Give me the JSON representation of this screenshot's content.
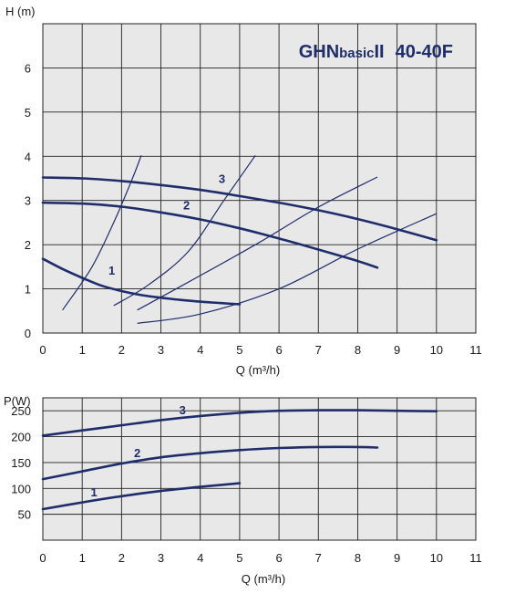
{
  "chart_data": [
    {
      "type": "line",
      "title": "GHNbasicII 40-40F",
      "title_parts": [
        "GHN",
        "basic",
        "II",
        "40-40F"
      ],
      "xlabel": "Q (m³/h)",
      "ylabel": "H (m)",
      "xlim": [
        0,
        11
      ],
      "ylim": [
        0,
        7
      ],
      "x_ticks": [
        0,
        1,
        2,
        3,
        4,
        5,
        6,
        7,
        8,
        9,
        10,
        11
      ],
      "y_ticks": [
        0,
        1,
        2,
        3,
        4,
        5,
        6
      ],
      "grid": true,
      "colors": {
        "curve": "#1f2d6b",
        "grid": "#222222",
        "plot_background": "#e8e8e8"
      },
      "series": [
        {
          "name": "1",
          "points": [
            [
              0,
              1.68
            ],
            [
              0.5,
              1.45
            ],
            [
              1,
              1.25
            ],
            [
              1.5,
              1.07
            ],
            [
              2,
              0.95
            ],
            [
              2.5,
              0.86
            ],
            [
              3,
              0.8
            ],
            [
              3.5,
              0.75
            ],
            [
              4,
              0.71
            ],
            [
              4.5,
              0.68
            ],
            [
              5,
              0.65
            ]
          ]
        },
        {
          "name": "2",
          "points": [
            [
              0,
              2.95
            ],
            [
              1,
              2.93
            ],
            [
              2,
              2.86
            ],
            [
              3,
              2.73
            ],
            [
              4,
              2.57
            ],
            [
              5,
              2.37
            ],
            [
              6,
              2.14
            ],
            [
              7,
              1.89
            ],
            [
              8,
              1.63
            ],
            [
              8.5,
              1.48
            ]
          ]
        },
        {
          "name": "3",
          "points": [
            [
              0,
              3.52
            ],
            [
              1,
              3.5
            ],
            [
              2,
              3.44
            ],
            [
              3,
              3.35
            ],
            [
              4,
              3.24
            ],
            [
              5,
              3.1
            ],
            [
              6,
              2.95
            ],
            [
              7,
              2.78
            ],
            [
              8,
              2.58
            ],
            [
              9,
              2.35
            ],
            [
              10,
              2.1
            ]
          ]
        }
      ],
      "system_curves": [
        [
          [
            0.5,
            0.52
          ],
          [
            1.25,
            1.5
          ],
          [
            1.85,
            2.6
          ],
          [
            2.3,
            3.55
          ],
          [
            2.5,
            4.02
          ]
        ],
        [
          [
            1.8,
            0.62
          ],
          [
            2.7,
            1.1
          ],
          [
            3.7,
            1.85
          ],
          [
            4.6,
            3.0
          ],
          [
            5.4,
            4.02
          ]
        ],
        [
          [
            2.4,
            0.52
          ],
          [
            4,
            1.3
          ],
          [
            5.5,
            2.05
          ],
          [
            7,
            2.85
          ],
          [
            8.5,
            3.53
          ]
        ],
        [
          [
            2.4,
            0.22
          ],
          [
            4,
            0.43
          ],
          [
            6,
            1.0
          ],
          [
            8,
            1.9
          ],
          [
            10,
            2.7
          ]
        ]
      ],
      "curve_labels": [
        {
          "text": "1",
          "x": 1.75,
          "y": 1.32
        },
        {
          "text": "2",
          "x": 3.65,
          "y": 2.8
        },
        {
          "text": "3",
          "x": 4.55,
          "y": 3.4
        }
      ]
    },
    {
      "type": "line",
      "xlabel": "Q (m³/h)",
      "ylabel": "P(W)",
      "xlim": [
        0,
        11
      ],
      "ylim": [
        0,
        275
      ],
      "x_ticks": [
        0,
        1,
        2,
        3,
        4,
        5,
        6,
        7,
        8,
        9,
        10,
        11
      ],
      "y_ticks": [
        50,
        100,
        150,
        200,
        250
      ],
      "grid": true,
      "colors": {
        "curve": "#1f2d6b",
        "grid": "#222222",
        "plot_background": "#e8e8e8"
      },
      "series": [
        {
          "name": "1",
          "points": [
            [
              0,
              60
            ],
            [
              1,
              73
            ],
            [
              2,
              85
            ],
            [
              3,
              95
            ],
            [
              4,
              103
            ],
            [
              5,
              110
            ]
          ]
        },
        {
          "name": "2",
          "points": [
            [
              0,
              118
            ],
            [
              1,
              133
            ],
            [
              2,
              148
            ],
            [
              3,
              160
            ],
            [
              4,
              168
            ],
            [
              5,
              174
            ],
            [
              6,
              178
            ],
            [
              7,
              180
            ],
            [
              8,
              180
            ],
            [
              8.5,
              179
            ]
          ]
        },
        {
          "name": "3",
          "points": [
            [
              0,
              202
            ],
            [
              1,
              212
            ],
            [
              2,
              222
            ],
            [
              3,
              232
            ],
            [
              4,
              240
            ],
            [
              5,
              246
            ],
            [
              6,
              250
            ],
            [
              7,
              251
            ],
            [
              8,
              251
            ],
            [
              9,
              250
            ],
            [
              10,
              249
            ]
          ]
        }
      ],
      "curve_labels": [
        {
          "text": "1",
          "x": 1.3,
          "y": 85
        },
        {
          "text": "2",
          "x": 2.4,
          "y": 160
        },
        {
          "text": "3",
          "x": 3.55,
          "y": 243
        }
      ]
    }
  ]
}
